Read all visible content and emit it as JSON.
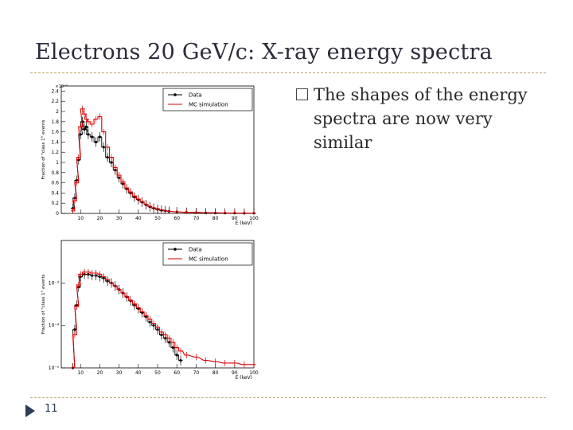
{
  "slide": {
    "title": "Electrons 20 GeV/c: X-ray energy spectra",
    "bullet": "The shapes of the energy spectra are now very similar",
    "page_number": "11"
  },
  "colors": {
    "data": "#000000",
    "mc": "#e00000",
    "accent": "#b9a46a",
    "arrow": "#2c3b57"
  },
  "chart_data": [
    {
      "type": "line",
      "scale": "linear",
      "multiplier_label": "×10⁻³",
      "xlabel": "E (keV)",
      "ylabel": "Fraction of \"class 1\" events",
      "xlim": [
        0,
        100
      ],
      "ylim": [
        0,
        2.5
      ],
      "x_ticks": [
        10,
        20,
        30,
        40,
        50,
        60,
        70,
        80,
        90,
        100
      ],
      "x_tick_labels": [
        "10",
        "20",
        "30",
        "40",
        "50",
        "60",
        "70",
        "80",
        "90",
        "100"
      ],
      "y_ticks": [
        0,
        0.2,
        0.4,
        0.6,
        0.8,
        1.0,
        1.2,
        1.4,
        1.6,
        1.8,
        2.0,
        2.2,
        2.4
      ],
      "y_tick_labels": [
        "0",
        "0.2",
        "0.4",
        "0.6",
        "0.8",
        "1",
        "1.2",
        "1.4",
        "1.6",
        "1.8",
        "2",
        "2.2",
        "2.4"
      ],
      "legend": [
        "Data",
        "MC simulation"
      ],
      "legend_position": "top-right",
      "series": [
        {
          "name": "Data",
          "x": [
            6,
            7,
            8,
            9,
            10,
            11,
            12,
            13,
            14,
            16,
            18,
            20,
            22,
            24,
            26,
            28,
            30,
            32,
            34,
            36,
            38,
            40,
            42,
            44,
            46,
            48,
            50,
            52,
            54,
            56,
            60,
            65,
            70,
            75,
            80,
            85,
            90,
            95,
            100
          ],
          "y": [
            0.1,
            0.3,
            0.65,
            1.05,
            1.55,
            1.8,
            1.65,
            1.7,
            1.55,
            1.5,
            1.4,
            1.5,
            1.3,
            1.1,
            1.0,
            0.85,
            0.7,
            0.58,
            0.48,
            0.4,
            0.32,
            0.27,
            0.22,
            0.17,
            0.13,
            0.1,
            0.08,
            0.06,
            0.05,
            0.04,
            0.03,
            0.02,
            0.015,
            0.01,
            0.008,
            0.006,
            0.005,
            0.004,
            0.003
          ]
        },
        {
          "name": "MC simulation",
          "x": [
            6,
            7,
            8,
            9,
            10,
            11,
            12,
            13,
            14,
            16,
            18,
            20,
            22,
            24,
            26,
            28,
            30,
            32,
            34,
            36,
            38,
            40,
            42,
            44,
            46,
            48,
            50,
            52,
            54,
            56,
            60,
            65,
            70,
            75,
            80,
            85,
            90,
            95,
            100
          ],
          "y": [
            0.05,
            0.25,
            0.6,
            1.1,
            1.7,
            2.05,
            1.95,
            1.85,
            1.8,
            1.75,
            1.85,
            1.9,
            1.6,
            1.3,
            1.1,
            0.9,
            0.75,
            0.62,
            0.5,
            0.42,
            0.34,
            0.28,
            0.23,
            0.18,
            0.14,
            0.11,
            0.09,
            0.07,
            0.05,
            0.04,
            0.03,
            0.02,
            0.02,
            0.015,
            0.012,
            0.01,
            0.008,
            0.006,
            0.005
          ]
        }
      ]
    },
    {
      "type": "line",
      "scale": "log",
      "xlabel": "E (keV)",
      "ylabel": "Fraction of \"class 1\" events",
      "xlim": [
        0,
        100
      ],
      "ylim": [
        1e-05,
        0.01
      ],
      "x_ticks": [
        10,
        20,
        30,
        40,
        50,
        60,
        70,
        80,
        90,
        100
      ],
      "x_tick_labels": [
        "10",
        "20",
        "30",
        "40",
        "50",
        "60",
        "70",
        "80",
        "90",
        "100"
      ],
      "y_ticks": [
        1e-05,
        0.0001,
        0.001
      ],
      "y_tick_labels": [
        "10⁻⁵",
        "10⁻⁴",
        "10⁻³"
      ],
      "legend": [
        "Data",
        "MC simulation"
      ],
      "legend_position": "top-right",
      "series": [
        {
          "name": "Data",
          "x": [
            6,
            7,
            8,
            9,
            10,
            12,
            14,
            16,
            18,
            20,
            22,
            24,
            26,
            28,
            30,
            32,
            34,
            36,
            38,
            40,
            42,
            44,
            46,
            48,
            50,
            52,
            54,
            56,
            58,
            60,
            62
          ],
          "y": [
            1e-05,
            8e-05,
            0.0003,
            0.0008,
            0.0014,
            0.0016,
            0.0016,
            0.0015,
            0.0015,
            0.0014,
            0.0013,
            0.0011,
            0.001,
            0.00085,
            0.0007,
            0.00058,
            0.00047,
            0.00038,
            0.0003,
            0.00025,
            0.0002,
            0.00016,
            0.00012,
            0.0001,
            8e-05,
            6e-05,
            5e-05,
            4e-05,
            3e-05,
            2e-05,
            1.5e-05
          ]
        },
        {
          "name": "MC simulation",
          "x": [
            6,
            7,
            8,
            9,
            10,
            12,
            14,
            16,
            18,
            20,
            22,
            24,
            26,
            28,
            30,
            32,
            34,
            36,
            38,
            40,
            42,
            44,
            46,
            48,
            50,
            52,
            54,
            56,
            58,
            60,
            62,
            65,
            70,
            75,
            80,
            85,
            90,
            95,
            100
          ],
          "y": [
            1e-05,
            6e-05,
            0.00028,
            0.0009,
            0.0016,
            0.0018,
            0.0018,
            0.0017,
            0.0017,
            0.0016,
            0.0014,
            0.0012,
            0.001,
            0.00085,
            0.0007,
            0.00058,
            0.00048,
            0.00039,
            0.00032,
            0.00026,
            0.00021,
            0.00017,
            0.00014,
            0.00011,
            9e-05,
            7e-05,
            6e-05,
            5e-05,
            4e-05,
            3e-05,
            2.5e-05,
            2e-05,
            1.8e-05,
            1.5e-05,
            1.4e-05,
            1.3e-05,
            1.3e-05,
            1.2e-05,
            1.2e-05
          ]
        }
      ]
    }
  ]
}
